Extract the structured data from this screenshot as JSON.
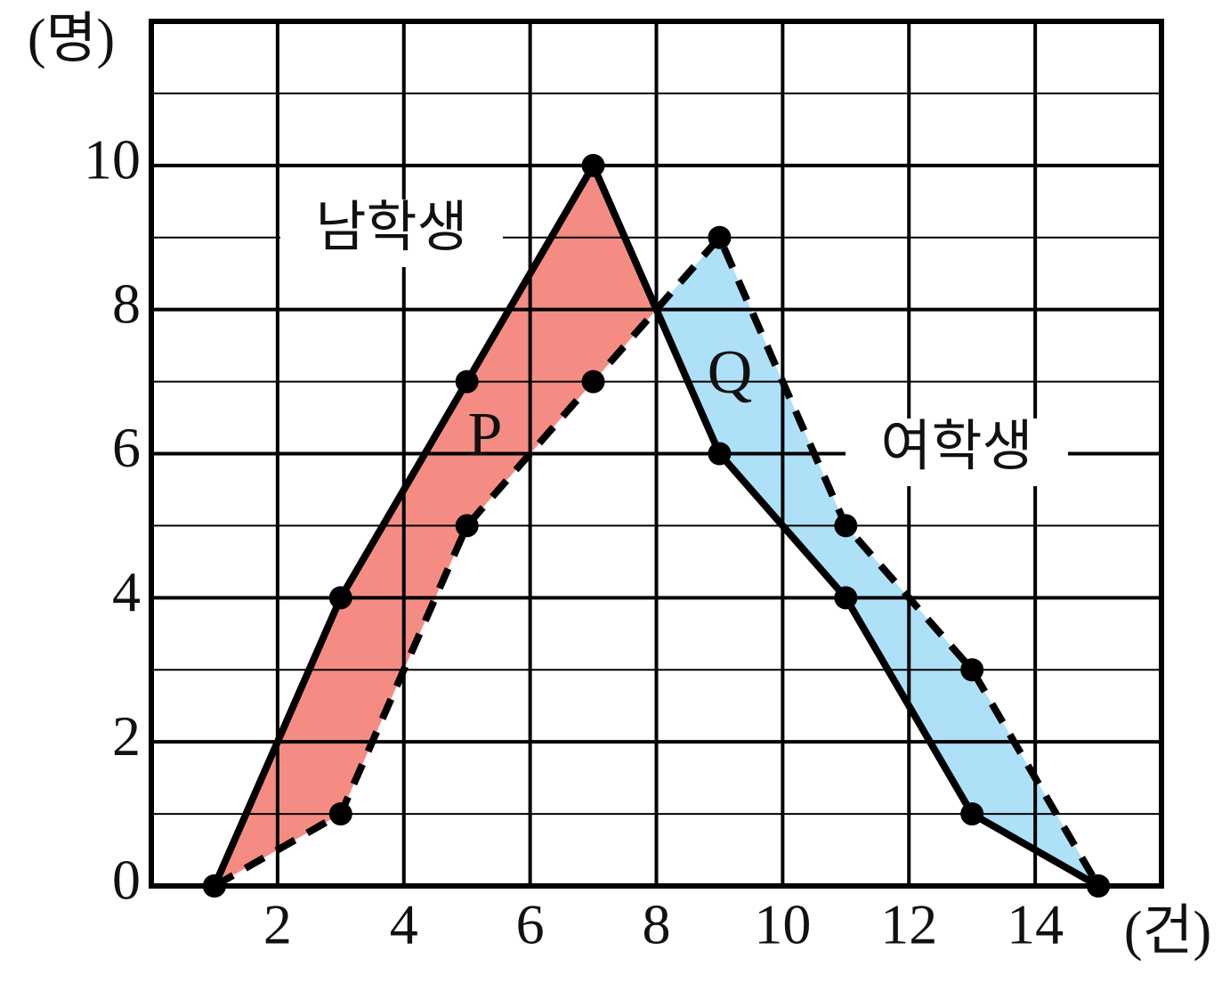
{
  "chart_data": {
    "type": "line",
    "y_unit_label": "(명)",
    "x_unit_label": "(건)",
    "x": [
      1,
      3,
      5,
      7,
      9,
      11,
      13,
      15
    ],
    "series": [
      {
        "name": "남학생",
        "color": "#000000",
        "dash": false,
        "values": [
          0,
          4,
          7,
          10,
          6,
          4,
          1,
          0
        ]
      },
      {
        "name": "여학생",
        "color": "#000000",
        "dash": true,
        "values": [
          0,
          1,
          5,
          7,
          9,
          5,
          3,
          0
        ]
      }
    ],
    "regions": [
      {
        "label": "P",
        "color": "#f48c84"
      },
      {
        "label": "Q",
        "color": "#aee0f8"
      }
    ],
    "xlim": [
      0,
      16
    ],
    "ylim": [
      0,
      12
    ],
    "xticks": [
      2,
      4,
      6,
      8,
      10,
      12,
      14
    ],
    "yticks": [
      0,
      2,
      4,
      6,
      8,
      10
    ],
    "minor_yticks": [
      1,
      3,
      5,
      7,
      9,
      11
    ],
    "grid": true
  }
}
